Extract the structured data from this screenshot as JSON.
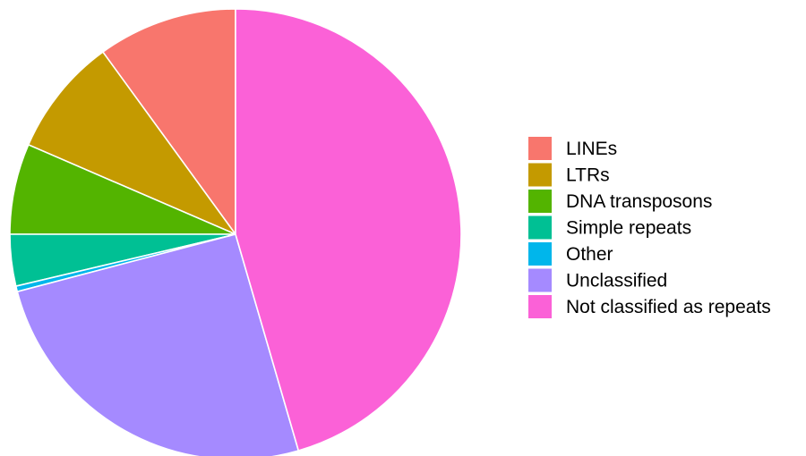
{
  "chart_data": {
    "type": "pie",
    "title": "",
    "start_angle_deg": 0,
    "direction": "counterclockwise",
    "legend_position": "right",
    "categories": [
      "LINEs",
      "LTRs",
      "DNA transposons",
      "Simple repeats",
      "Other",
      "Unclassified",
      "Not classified as repeats"
    ],
    "values": [
      10.0,
      8.5,
      6.5,
      3.7,
      0.4,
      25.4,
      45.5
    ],
    "unit": "percent",
    "colors": [
      "#F8766D",
      "#C49A00",
      "#53B400",
      "#00C094",
      "#00B6EB",
      "#A58AFF",
      "#FB61D7"
    ]
  }
}
